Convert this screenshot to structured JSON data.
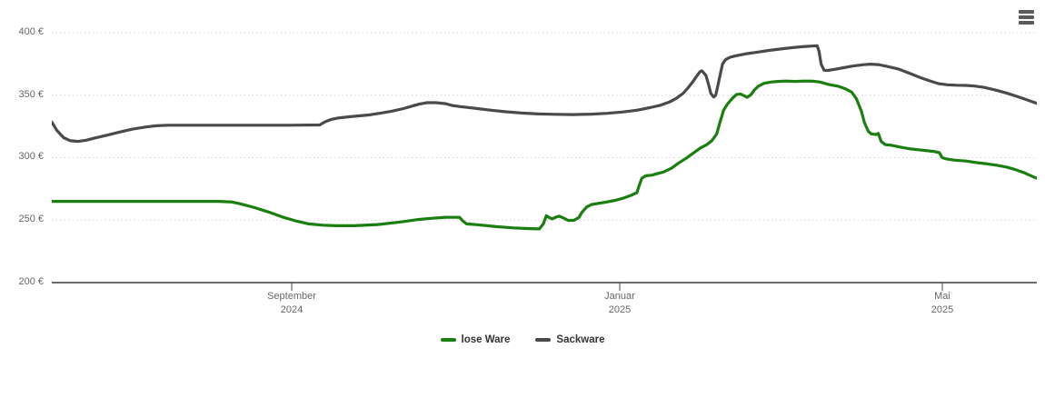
{
  "chart": {
    "background_color": "#ffffff",
    "y_axis": {
      "ticks": [
        {
          "value": 200,
          "label": "200 €"
        },
        {
          "value": 250,
          "label": "250 €"
        },
        {
          "value": 300,
          "label": "300 €"
        },
        {
          "value": 350,
          "label": "350 €"
        },
        {
          "value": 400,
          "label": "400 €"
        }
      ]
    },
    "x_axis": {
      "ticks": [
        {
          "pos": 0.2435,
          "line1": "September",
          "line2": "2024"
        },
        {
          "pos": 0.5766,
          "line1": "Januar",
          "line2": "2025"
        },
        {
          "pos": 0.9041,
          "line1": "Mai",
          "line2": "2025"
        }
      ]
    },
    "legend": {
      "items": [
        {
          "label": "lose Ware",
          "color": "#1b7e10"
        },
        {
          "label": "Sackware",
          "color": "#4a4a4a"
        }
      ]
    },
    "menu_icon": "hamburger-context-menu",
    "colors": {
      "grid": "#d6d6d6",
      "axis": "#3c3c3c",
      "tick": "#4a4a4a",
      "label_text": "#666666",
      "legend_text": "#333333"
    }
  },
  "chart_data": {
    "type": "line",
    "title": "",
    "xlabel": "",
    "ylabel": "",
    "currency": "EUR",
    "ylim": [
      200,
      412
    ],
    "y_ticks": [
      200,
      250,
      300,
      350,
      400
    ],
    "x_range_estimate": [
      "Juni 2024",
      "Juni 2025"
    ],
    "x_tick_labels": [
      "September 2024",
      "Januar 2025",
      "Mai 2025"
    ],
    "grid": "horizontal-dotted",
    "legend_position": "bottom-center",
    "series": [
      {
        "name": "lose Ware",
        "color": "#1b7e10",
        "points": [
          [
            0.0,
            265
          ],
          [
            0.1,
            265
          ],
          [
            0.169,
            265
          ],
          [
            0.183,
            264.5
          ],
          [
            0.192,
            263
          ],
          [
            0.206,
            260
          ],
          [
            0.22,
            256.5
          ],
          [
            0.234,
            252.5
          ],
          [
            0.247,
            249.5
          ],
          [
            0.261,
            247
          ],
          [
            0.275,
            246
          ],
          [
            0.289,
            245.5
          ],
          [
            0.307,
            245.5
          ],
          [
            0.331,
            246.5
          ],
          [
            0.354,
            248.5
          ],
          [
            0.372,
            250.5
          ],
          [
            0.386,
            251.5
          ],
          [
            0.4,
            252.3
          ],
          [
            0.414,
            252.2
          ],
          [
            0.417,
            249.5
          ],
          [
            0.421,
            247
          ],
          [
            0.432,
            246.3
          ],
          [
            0.451,
            244.8
          ],
          [
            0.469,
            243.8
          ],
          [
            0.485,
            243.2
          ],
          [
            0.495,
            243
          ],
          [
            0.499,
            247
          ],
          [
            0.502,
            253.5
          ],
          [
            0.505,
            252
          ],
          [
            0.508,
            251
          ],
          [
            0.512,
            252.5
          ],
          [
            0.515,
            253.2
          ],
          [
            0.52,
            251.5
          ],
          [
            0.524,
            249.8
          ],
          [
            0.53,
            249.8
          ],
          [
            0.535,
            252
          ],
          [
            0.538,
            256
          ],
          [
            0.543,
            260.5
          ],
          [
            0.548,
            262.5
          ],
          [
            0.554,
            263.3
          ],
          [
            0.562,
            264.3
          ],
          [
            0.572,
            265.8
          ],
          [
            0.581,
            267.8
          ],
          [
            0.588,
            269.8
          ],
          [
            0.594,
            272
          ],
          [
            0.596,
            277
          ],
          [
            0.599,
            283.5
          ],
          [
            0.603,
            285.5
          ],
          [
            0.609,
            286
          ],
          [
            0.616,
            287.5
          ],
          [
            0.621,
            288.5
          ],
          [
            0.629,
            291.5
          ],
          [
            0.636,
            295.5
          ],
          [
            0.644,
            299.5
          ],
          [
            0.651,
            303.5
          ],
          [
            0.658,
            307.5
          ],
          [
            0.665,
            310.5
          ],
          [
            0.67,
            313.5
          ],
          [
            0.675,
            319
          ],
          [
            0.679,
            330
          ],
          [
            0.682,
            338
          ],
          [
            0.686,
            343
          ],
          [
            0.691,
            347.5
          ],
          [
            0.695,
            350.5
          ],
          [
            0.699,
            351
          ],
          [
            0.703,
            349.5
          ],
          [
            0.706,
            348.3
          ],
          [
            0.71,
            350.5
          ],
          [
            0.713,
            354
          ],
          [
            0.717,
            357
          ],
          [
            0.723,
            359.5
          ],
          [
            0.73,
            360.5
          ],
          [
            0.737,
            361
          ],
          [
            0.745,
            361.3
          ],
          [
            0.755,
            361
          ],
          [
            0.764,
            361.3
          ],
          [
            0.773,
            361.2
          ],
          [
            0.78,
            360.5
          ],
          [
            0.789,
            358.5
          ],
          [
            0.799,
            357
          ],
          [
            0.806,
            355
          ],
          [
            0.812,
            352.5
          ],
          [
            0.817,
            347
          ],
          [
            0.822,
            337
          ],
          [
            0.825,
            328
          ],
          [
            0.829,
            321
          ],
          [
            0.832,
            319
          ],
          [
            0.837,
            318.5
          ],
          [
            0.839,
            319.5
          ],
          [
            0.842,
            313
          ],
          [
            0.846,
            310.5
          ],
          [
            0.852,
            310
          ],
          [
            0.861,
            308.5
          ],
          [
            0.872,
            307
          ],
          [
            0.884,
            306
          ],
          [
            0.895,
            305
          ],
          [
            0.901,
            304
          ],
          [
            0.904,
            300
          ],
          [
            0.908,
            299
          ],
          [
            0.917,
            298
          ],
          [
            0.928,
            297.3
          ],
          [
            0.939,
            296
          ],
          [
            0.95,
            295
          ],
          [
            0.959,
            294
          ],
          [
            0.969,
            292.5
          ],
          [
            0.978,
            290.5
          ],
          [
            0.987,
            288
          ],
          [
            0.994,
            285.5
          ],
          [
            1.0,
            283.5
          ]
        ]
      },
      {
        "name": "Sackware",
        "color": "#4a4a4a",
        "points": [
          [
            0.0,
            328.5
          ],
          [
            0.005,
            322
          ],
          [
            0.012,
            316
          ],
          [
            0.019,
            313.5
          ],
          [
            0.027,
            313
          ],
          [
            0.035,
            314
          ],
          [
            0.044,
            315.8
          ],
          [
            0.056,
            318
          ],
          [
            0.069,
            320.5
          ],
          [
            0.082,
            322.8
          ],
          [
            0.095,
            324.5
          ],
          [
            0.106,
            325.5
          ],
          [
            0.118,
            326
          ],
          [
            0.16,
            326
          ],
          [
            0.2,
            326
          ],
          [
            0.24,
            326
          ],
          [
            0.272,
            326.2
          ],
          [
            0.277,
            328.5
          ],
          [
            0.283,
            330.5
          ],
          [
            0.291,
            331.8
          ],
          [
            0.303,
            332.8
          ],
          [
            0.322,
            334.2
          ],
          [
            0.335,
            335.8
          ],
          [
            0.346,
            337.3
          ],
          [
            0.357,
            339.3
          ],
          [
            0.366,
            341.3
          ],
          [
            0.373,
            342.8
          ],
          [
            0.381,
            344
          ],
          [
            0.39,
            344
          ],
          [
            0.4,
            343.2
          ],
          [
            0.406,
            341.8
          ],
          [
            0.413,
            341
          ],
          [
            0.422,
            340.2
          ],
          [
            0.433,
            339.2
          ],
          [
            0.446,
            338
          ],
          [
            0.461,
            336.7
          ],
          [
            0.477,
            335.7
          ],
          [
            0.494,
            335
          ],
          [
            0.511,
            334.7
          ],
          [
            0.529,
            334.5
          ],
          [
            0.548,
            334.8
          ],
          [
            0.564,
            335.5
          ],
          [
            0.579,
            336.5
          ],
          [
            0.594,
            338
          ],
          [
            0.607,
            340
          ],
          [
            0.618,
            342
          ],
          [
            0.627,
            344.5
          ],
          [
            0.634,
            347.5
          ],
          [
            0.641,
            351.5
          ],
          [
            0.646,
            356
          ],
          [
            0.651,
            361
          ],
          [
            0.655,
            365.5
          ],
          [
            0.658,
            368.8
          ],
          [
            0.66,
            369.5
          ],
          [
            0.664,
            366
          ],
          [
            0.667,
            358
          ],
          [
            0.669,
            351.5
          ],
          [
            0.672,
            348.5
          ],
          [
            0.674,
            350
          ],
          [
            0.676,
            357
          ],
          [
            0.679,
            368
          ],
          [
            0.681,
            375
          ],
          [
            0.684,
            378.5
          ],
          [
            0.689,
            380.5
          ],
          [
            0.697,
            382
          ],
          [
            0.706,
            383.3
          ],
          [
            0.717,
            384.5
          ],
          [
            0.728,
            385.8
          ],
          [
            0.74,
            387
          ],
          [
            0.751,
            388
          ],
          [
            0.762,
            388.8
          ],
          [
            0.771,
            389.3
          ],
          [
            0.777,
            389.5
          ],
          [
            0.779,
            385
          ],
          [
            0.781,
            375
          ],
          [
            0.784,
            370
          ],
          [
            0.788,
            369.8
          ],
          [
            0.796,
            370.8
          ],
          [
            0.804,
            372
          ],
          [
            0.813,
            373.3
          ],
          [
            0.823,
            374.3
          ],
          [
            0.831,
            374.8
          ],
          [
            0.839,
            374.5
          ],
          [
            0.848,
            373
          ],
          [
            0.86,
            370.8
          ],
          [
            0.871,
            367.5
          ],
          [
            0.882,
            364
          ],
          [
            0.891,
            361.5
          ],
          [
            0.9,
            359.3
          ],
          [
            0.909,
            358.3
          ],
          [
            0.919,
            358
          ],
          [
            0.928,
            357.8
          ],
          [
            0.937,
            357.3
          ],
          [
            0.946,
            356.3
          ],
          [
            0.957,
            354.3
          ],
          [
            0.969,
            351.8
          ],
          [
            0.98,
            349
          ],
          [
            0.991,
            346
          ],
          [
            1.0,
            343.5
          ]
        ]
      }
    ]
  }
}
